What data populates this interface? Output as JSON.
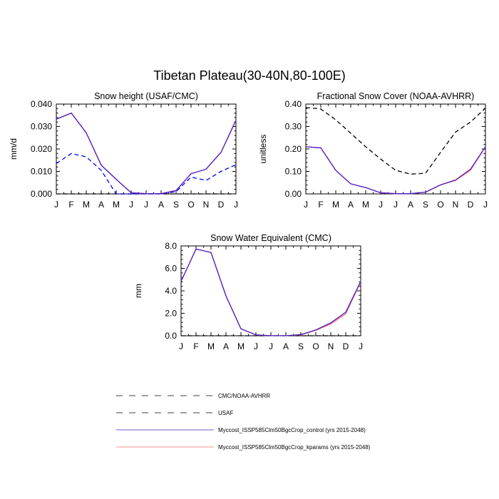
{
  "title": "Tibetan Plateau(30-40N,80-100E)",
  "months": [
    "J",
    "F",
    "M",
    "A",
    "M",
    "J",
    "J",
    "A",
    "S",
    "O",
    "N",
    "D",
    "J"
  ],
  "colors": {
    "obs_black": "#000000",
    "obs_blue": "#0000ff",
    "control": "#4b1ec8",
    "kparams": "#ff6d6d"
  },
  "legend": [
    {
      "label": "CMC/NOAA-AVHRR",
      "style": "dashed",
      "color": "#000000"
    },
    {
      "label": "USAF",
      "style": "dashed",
      "color": "#000000"
    },
    {
      "label": "Myccost_ISSP585Clm50BgcCrop_control (yrs 2015-2048)",
      "style": "solid",
      "color": "#4b1ec8"
    },
    {
      "label": "Myccost_ISSP585Clm50BgcCrop_kparams (yrs 2015-2048)",
      "style": "solid",
      "color": "#ff6d6d"
    }
  ],
  "chart_data": [
    {
      "type": "line",
      "title": "Snow height (USAF/CMC)",
      "ylabel": "mm/d",
      "ylim": [
        0,
        0.04
      ],
      "yticks": [
        "0.000",
        "0.010",
        "0.020",
        "0.030",
        "0.040"
      ],
      "series": [
        {
          "name": "CMC/NOAA-AVHRR",
          "style": "dashed",
          "color": "#000000",
          "values": [
            0,
            0,
            0,
            0,
            0,
            0,
            0,
            0,
            0,
            0,
            0,
            0,
            0
          ]
        },
        {
          "name": "USAF",
          "style": "dashed",
          "color": "#0000ff",
          "values": [
            0.0135,
            0.018,
            0.0165,
            0.0105,
            0.0,
            0.0,
            0.0,
            0.0,
            0.001,
            0.0075,
            0.006,
            0.01,
            0.013
          ]
        },
        {
          "name": "Myccost_ISSP585Clm50BgcCrop_kparams (yrs 2015-2048)",
          "style": "solid",
          "color": "#ff6d6d",
          "values": [
            0.0333,
            0.036,
            0.0272,
            0.0128,
            0.0065,
            0.0005,
            0.0001,
            0.0001,
            0.0015,
            0.009,
            0.011,
            0.0185,
            0.0328
          ]
        },
        {
          "name": "Myccost_ISSP585Clm50BgcCrop_control (yrs 2015-2048)",
          "style": "solid",
          "color": "#4b1ec8",
          "values": [
            0.0333,
            0.036,
            0.0272,
            0.0128,
            0.0065,
            0.0005,
            0.0001,
            0.0001,
            0.0015,
            0.009,
            0.011,
            0.0185,
            0.0328
          ]
        }
      ]
    },
    {
      "type": "line",
      "title": "Fractional Snow Cover (NOAA-AVHRR)",
      "ylabel": "unitless",
      "ylim": [
        0,
        0.4
      ],
      "yticks": [
        "0.00",
        "0.10",
        "0.20",
        "0.30",
        "0.40"
      ],
      "series": [
        {
          "name": "CMC/NOAA-AVHRR",
          "style": "dashed",
          "color": "#000000",
          "values": [
            0.385,
            0.378,
            0.33,
            0.27,
            0.21,
            0.155,
            0.105,
            0.088,
            0.092,
            0.185,
            0.275,
            0.32,
            0.382
          ]
        },
        {
          "name": "Myccost_ISSP585Clm50BgcCrop_kparams (yrs 2015-2048)",
          "style": "solid",
          "color": "#ff6d6d",
          "values": [
            0.21,
            0.205,
            0.105,
            0.045,
            0.028,
            0.005,
            0.001,
            0.001,
            0.008,
            0.04,
            0.06,
            0.105,
            0.21
          ]
        },
        {
          "name": "Myccost_ISSP585Clm50BgcCrop_control (yrs 2015-2048)",
          "style": "solid",
          "color": "#4b1ec8",
          "values": [
            0.21,
            0.205,
            0.105,
            0.045,
            0.028,
            0.005,
            0.001,
            0.001,
            0.008,
            0.04,
            0.062,
            0.11,
            0.21
          ]
        }
      ]
    },
    {
      "type": "line",
      "title": "Snow Water Equivalent (CMC)",
      "ylabel": "mm",
      "ylim": [
        0,
        8
      ],
      "yticks": [
        "0.0",
        "2.0",
        "4.0",
        "6.0",
        "8.0"
      ],
      "series": [
        {
          "name": "CMC/NOAA-AVHRR",
          "style": "dashed",
          "color": "#000000",
          "values": [
            0,
            0,
            0,
            0,
            0,
            0,
            0,
            0,
            0,
            0,
            0,
            0,
            0
          ]
        },
        {
          "name": "Myccost_ISSP585Clm50BgcCrop_kparams (yrs 2015-2048)",
          "style": "solid",
          "color": "#ff6d6d",
          "values": [
            4.85,
            7.72,
            7.42,
            3.55,
            0.62,
            0.08,
            0.01,
            0.01,
            0.08,
            0.48,
            1.05,
            1.95,
            4.8
          ]
        },
        {
          "name": "Myccost_ISSP585Clm50BgcCrop_control (yrs 2015-2048)",
          "style": "solid",
          "color": "#4b1ec8",
          "values": [
            4.85,
            7.72,
            7.42,
            3.55,
            0.62,
            0.08,
            0.01,
            0.01,
            0.1,
            0.52,
            1.15,
            2.1,
            4.85
          ]
        }
      ]
    }
  ]
}
